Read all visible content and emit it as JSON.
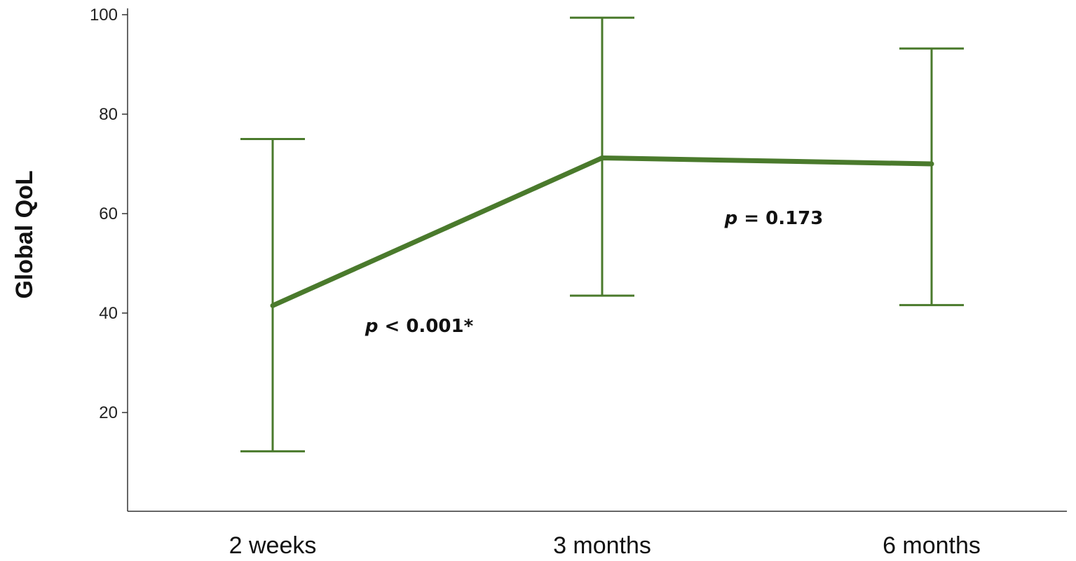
{
  "chart_data": {
    "type": "line",
    "ylabel": "Global QoL",
    "xlabel": "",
    "categories": [
      "2 weeks",
      "3 months",
      "6 months"
    ],
    "series": [
      {
        "values": [
          41.5,
          71.2,
          70.0
        ],
        "error_low": [
          12.2,
          43.5,
          41.6
        ],
        "error_high": [
          75.0,
          99.4,
          93.2
        ]
      }
    ],
    "ylim": [
      0,
      101
    ],
    "yticks": [
      20,
      40,
      60,
      80,
      100
    ],
    "grid": false,
    "annotations": [
      {
        "p_symbol": "p",
        "text": " < 0.001*",
        "between": [
          "2 weeks",
          "3 months"
        ]
      },
      {
        "p_symbol": "p",
        "text": " = 0.173",
        "between": [
          "3 months",
          "6 months"
        ]
      }
    ],
    "colors": {
      "line": "#4a7a2c",
      "axis": "#333333"
    }
  }
}
